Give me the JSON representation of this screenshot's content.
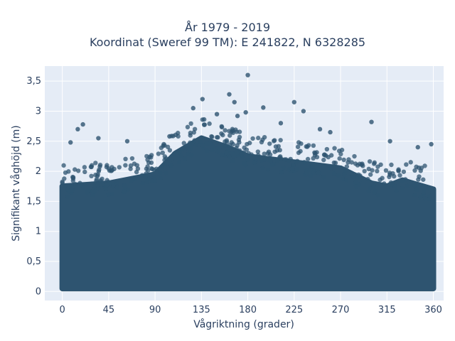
{
  "chart_data": {
    "type": "scatter",
    "title": "År 1979 - 2019",
    "subtitle": "Koordinat (Sweref 99 TM): E 241822, N 6328285",
    "xlabel": "Vågriktning (grader)",
    "ylabel": "Signifikant våghöjd (m)",
    "xlim": [
      -17,
      370
    ],
    "ylim": [
      -0.15,
      3.75
    ],
    "xticks": [
      0,
      45,
      90,
      135,
      180,
      225,
      270,
      315,
      360
    ],
    "yticks": [
      0,
      0.5,
      1,
      1.5,
      2,
      2.5,
      3,
      3.5
    ],
    "ytick_labels": [
      "0",
      "0,5",
      "1",
      "1,5",
      "2",
      "2,5",
      "3",
      "3,5"
    ],
    "grid": true,
    "marker_color": "#2e5470",
    "dense_band_upper_envelope": {
      "x": [
        0,
        45,
        90,
        110,
        135,
        160,
        180,
        225,
        270,
        300,
        315,
        330,
        360
      ],
      "y": [
        1.75,
        1.8,
        1.95,
        2.3,
        2.55,
        2.4,
        2.25,
        2.15,
        2.05,
        1.8,
        1.75,
        1.85,
        1.7
      ]
    },
    "outliers": [
      {
        "x": 180,
        "y": 3.6
      },
      {
        "x": 136,
        "y": 3.2
      },
      {
        "x": 162,
        "y": 3.28
      },
      {
        "x": 167,
        "y": 3.15
      },
      {
        "x": 225,
        "y": 3.15
      },
      {
        "x": 127,
        "y": 3.05
      },
      {
        "x": 178,
        "y": 2.98
      },
      {
        "x": 195,
        "y": 3.06
      },
      {
        "x": 234,
        "y": 3.0
      },
      {
        "x": 300,
        "y": 2.82
      },
      {
        "x": 20,
        "y": 2.78
      },
      {
        "x": 15,
        "y": 2.7
      },
      {
        "x": 35,
        "y": 2.55
      },
      {
        "x": 63,
        "y": 2.5
      },
      {
        "x": 250,
        "y": 2.7
      },
      {
        "x": 260,
        "y": 2.65
      },
      {
        "x": 318,
        "y": 2.5
      },
      {
        "x": 345,
        "y": 2.4
      },
      {
        "x": 358,
        "y": 2.45
      },
      {
        "x": 8,
        "y": 2.48
      },
      {
        "x": 104,
        "y": 2.58
      },
      {
        "x": 150,
        "y": 2.95
      },
      {
        "x": 170,
        "y": 2.92
      },
      {
        "x": 212,
        "y": 2.8
      }
    ]
  }
}
